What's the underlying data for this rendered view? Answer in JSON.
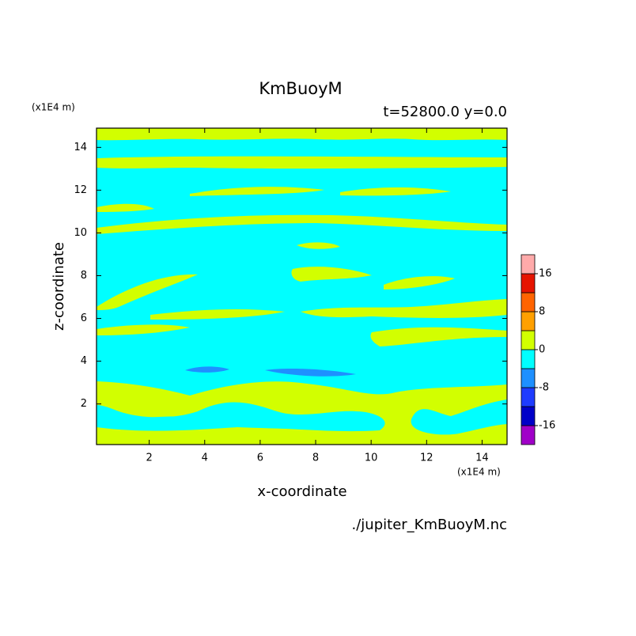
{
  "chart_data": {
    "type": "contour",
    "title": "KmBuoyM",
    "subtitle": "t=52800.0 y=0.0",
    "x_label": "x-coordinate",
    "y_label": "z-coordinate",
    "x_unit": "(x1E4 m)",
    "y_unit": "(x1E4 m)",
    "source": "./jupiter_KmBuoyM.nc",
    "xlim": [
      0.1,
      14.9
    ],
    "ylim": [
      0.1,
      14.9
    ],
    "xticks": [
      2,
      4,
      6,
      8,
      10,
      12,
      14
    ],
    "yticks": [
      2,
      4,
      6,
      8,
      10,
      12,
      14
    ],
    "levels": [
      -20,
      -16,
      -12,
      -8,
      -4,
      0,
      4,
      8,
      12,
      16,
      20
    ],
    "colors": [
      "#a000c8",
      "#0000c8",
      "#1e3cff",
      "#1e90ff",
      "#00ffff",
      "#d2ff00",
      "#ffa000",
      "#ff6400",
      "#e61400",
      "#ffaaaa"
    ],
    "colorbar_ticks": [
      -16,
      -8,
      0,
      8,
      16
    ]
  }
}
